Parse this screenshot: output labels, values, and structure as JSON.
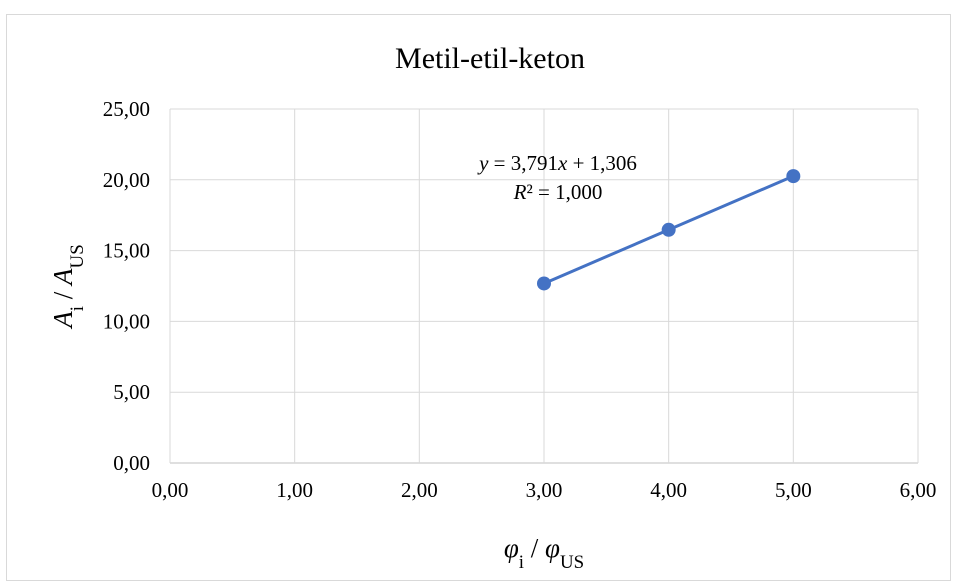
{
  "chart_data": {
    "type": "scatter",
    "title": "Metil-etil-keton",
    "xlabel": [
      {
        "text": "φ",
        "italic": true
      },
      {
        "text": "i",
        "sub": true
      },
      {
        "text": " / "
      },
      {
        "text": "φ",
        "italic": true
      },
      {
        "text": "US",
        "sub": true
      }
    ],
    "ylabel": [
      {
        "text": "A",
        "italic": true
      },
      {
        "text": "i",
        "sub": true
      },
      {
        "text": " / "
      },
      {
        "text": "A",
        "italic": true
      },
      {
        "text": "US",
        "sub": true
      }
    ],
    "series": [
      {
        "name": "Metil-etil-keton",
        "color": "#4472c4",
        "x": [
          3,
          4,
          5
        ],
        "values": [
          12.68,
          16.47,
          20.26
        ]
      }
    ],
    "equation": [
      [
        {
          "text": "y",
          "italic": true
        },
        {
          "text": " = 3,791"
        },
        {
          "text": "x",
          "italic": true
        },
        {
          "text": " + 1,306"
        }
      ],
      [
        {
          "text": "R",
          "italic": true
        },
        {
          "text": "² = 1,000"
        }
      ]
    ],
    "xlim": [
      0,
      6
    ],
    "ylim": [
      0,
      25
    ],
    "xticks": [
      {
        "value": 0,
        "label": "0,00"
      },
      {
        "value": 1,
        "label": "1,00"
      },
      {
        "value": 2,
        "label": "2,00"
      },
      {
        "value": 3,
        "label": "3,00"
      },
      {
        "value": 4,
        "label": "4,00"
      },
      {
        "value": 5,
        "label": "5,00"
      },
      {
        "value": 6,
        "label": "6,00"
      }
    ],
    "yticks": [
      {
        "value": 0,
        "label": "0,00"
      },
      {
        "value": 5,
        "label": "5,00"
      },
      {
        "value": 10,
        "label": "10,00"
      },
      {
        "value": 15,
        "label": "15,00"
      },
      {
        "value": 20,
        "label": "20,00"
      },
      {
        "value": 25,
        "label": "25,00"
      }
    ],
    "grid": true
  }
}
